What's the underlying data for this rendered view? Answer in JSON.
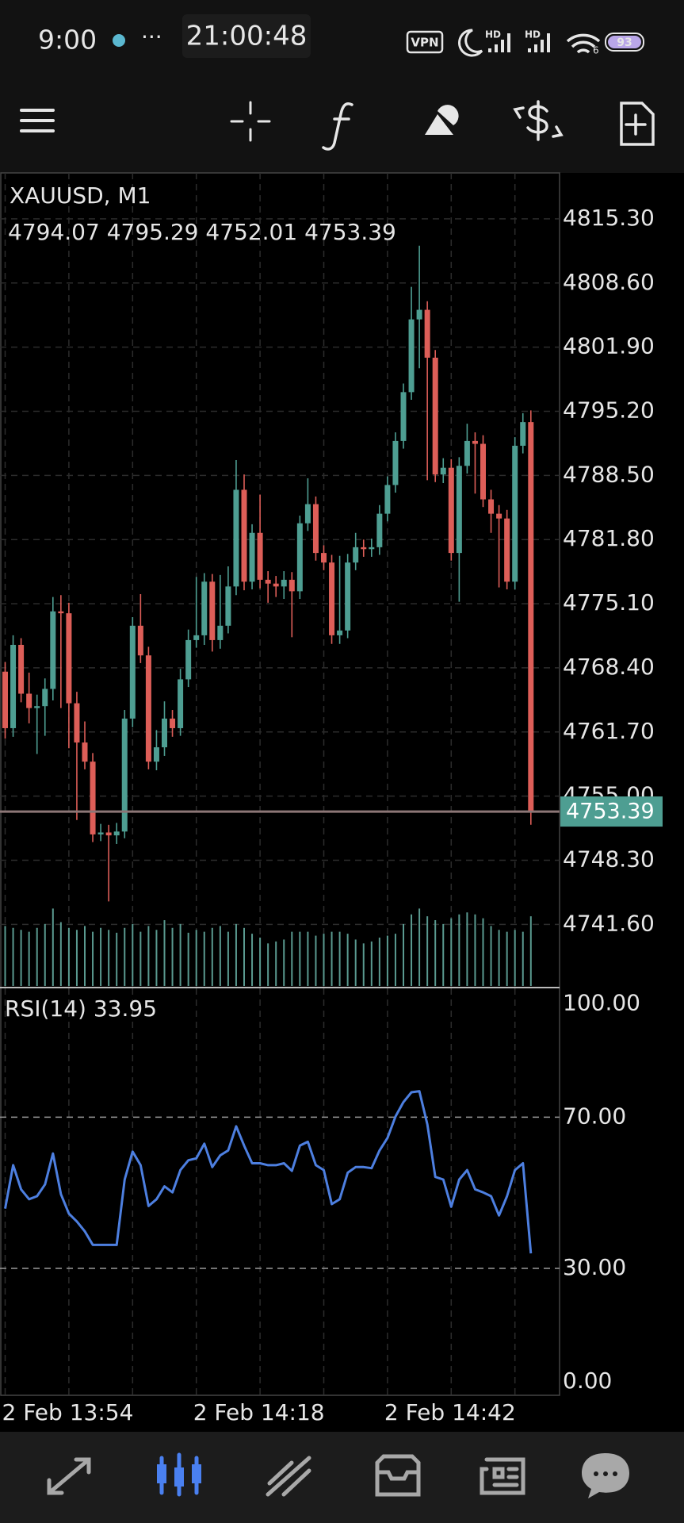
{
  "status_bar": {
    "time": "9:00",
    "clock": "21:00:48",
    "vpn": "VPN",
    "signal_labels": [
      "HD",
      "HD"
    ],
    "wifi": "6",
    "battery": "93"
  },
  "chart_data": [
    {
      "type": "candlestick",
      "title": "XAUUSD, M1",
      "subtitle": "4794.07 4795.29 4752.01 4753.39",
      "categories": [
        "2 Feb 13:54",
        null,
        null,
        null,
        null,
        null,
        null,
        null,
        null,
        null,
        null,
        null,
        null,
        null,
        null,
        null,
        null,
        null,
        null,
        null,
        null,
        null,
        null,
        null,
        "2 Feb 14:18",
        null,
        null,
        null,
        null,
        null,
        null,
        null,
        null,
        null,
        null,
        null,
        null,
        null,
        null,
        null,
        null,
        null,
        null,
        null,
        null,
        null,
        null,
        null,
        "2 Feb 14:42",
        null,
        null,
        null,
        null,
        null,
        null,
        null,
        null,
        null,
        null,
        null,
        null,
        null,
        null,
        null,
        null,
        null,
        null
      ],
      "open": [
        4768.0,
        4762.1,
        4770.8,
        4765.7,
        4764.2,
        4764.4,
        4766.2,
        4774.3,
        4774.1,
        4764.7,
        4760.6,
        4758.6,
        4751.0,
        4751.2,
        4750.9,
        4751.3,
        4763.1,
        4772.8,
        4769.7,
        4758.6,
        4760.1,
        4763.1,
        4762.1,
        4767.2,
        4771.3,
        4771.8,
        4777.4,
        4771.3,
        4772.8,
        4776.9,
        4787.0,
        4777.4,
        4782.5,
        4777.6,
        4777.2,
        4776.9,
        4777.6,
        4776.4,
        4783.5,
        4785.5,
        4780.4,
        4779.4,
        4771.8,
        4772.3,
        4779.4,
        4781.0,
        4780.8,
        4781.0,
        4784.5,
        4787.5,
        4792.1,
        4797.2,
        4804.8,
        4805.8,
        4800.8,
        4788.6,
        4789.3,
        4780.4,
        4789.5,
        4792.1,
        4791.8,
        4786.0,
        4784.5,
        4784.0,
        4777.4,
        4791.6,
        4794.07
      ],
      "high": [
        4769.0,
        4771.8,
        4771.5,
        4767.9,
        4765.6,
        4767.3,
        4775.8,
        4776.0,
        4775.2,
        4765.9,
        4762.8,
        4759.5,
        4752.1,
        4752.0,
        4752.2,
        4764.0,
        4773.7,
        4776.1,
        4770.6,
        4761.9,
        4764.9,
        4764.0,
        4768.3,
        4772.4,
        4777.9,
        4778.3,
        4778.2,
        4778.1,
        4779.0,
        4790.1,
        4788.6,
        4783.4,
        4786.5,
        4778.5,
        4778.0,
        4778.5,
        4778.4,
        4784.3,
        4788.2,
        4786.3,
        4781.2,
        4780.2,
        4780.1,
        4780.3,
        4782.5,
        4781.8,
        4781.9,
        4785.4,
        4788.4,
        4793.0,
        4798.1,
        4808.2,
        4812.5,
        4806.7,
        4801.6,
        4790.3,
        4790.2,
        4790.4,
        4793.9,
        4793.0,
        4792.7,
        4787.0,
        4785.4,
        4784.9,
        4792.5,
        4795.0,
        4795.29
      ],
      "low": [
        4761.0,
        4761.2,
        4764.8,
        4762.6,
        4759.4,
        4761.3,
        4765.0,
        4764.2,
        4760.0,
        4752.5,
        4757.8,
        4750.2,
        4750.3,
        4744.0,
        4750.0,
        4750.6,
        4762.2,
        4768.9,
        4757.8,
        4757.7,
        4759.2,
        4761.2,
        4761.3,
        4766.4,
        4770.5,
        4770.8,
        4770.1,
        4770.4,
        4772.0,
        4776.0,
        4776.5,
        4776.6,
        4776.7,
        4775.2,
        4775.8,
        4775.6,
        4771.6,
        4775.6,
        4782.7,
        4779.6,
        4778.6,
        4770.9,
        4770.9,
        4771.5,
        4778.6,
        4780.0,
        4780.0,
        4780.2,
        4783.7,
        4786.7,
        4791.3,
        4796.4,
        4799.7,
        4788.0,
        4787.8,
        4787.7,
        4779.6,
        4775.3,
        4788.7,
        4786.6,
        4785.2,
        4782.5,
        4776.8,
        4776.6,
        4776.6,
        4790.8,
        4752.01
      ],
      "close": [
        4762.1,
        4770.8,
        4765.7,
        4764.2,
        4764.4,
        4766.2,
        4774.3,
        4774.1,
        4764.7,
        4760.6,
        4758.6,
        4751.0,
        4751.2,
        4750.9,
        4751.3,
        4763.1,
        4772.8,
        4769.7,
        4758.6,
        4760.1,
        4763.1,
        4762.1,
        4767.2,
        4771.3,
        4771.8,
        4777.4,
        4771.3,
        4772.8,
        4776.9,
        4787.0,
        4777.4,
        4782.5,
        4777.6,
        4777.2,
        4776.9,
        4777.6,
        4776.4,
        4783.5,
        4785.5,
        4780.4,
        4779.4,
        4771.8,
        4772.3,
        4779.4,
        4781.0,
        4780.8,
        4781.0,
        4784.5,
        4787.5,
        4792.1,
        4797.2,
        4804.8,
        4805.8,
        4800.8,
        4788.6,
        4789.3,
        4780.4,
        4789.5,
        4792.1,
        4791.8,
        4786.0,
        4784.5,
        4784.0,
        4777.4,
        4791.6,
        4794.07,
        4753.39
      ],
      "volume": [
        62,
        60,
        58,
        56,
        60,
        64,
        80,
        66,
        60,
        58,
        62,
        56,
        60,
        58,
        55,
        60,
        64,
        56,
        62,
        58,
        68,
        60,
        64,
        55,
        58,
        56,
        60,
        62,
        56,
        64,
        60,
        54,
        50,
        44,
        46,
        48,
        56,
        56,
        56,
        52,
        54,
        56,
        56,
        54,
        48,
        44,
        46,
        50,
        52,
        54,
        64,
        74,
        80,
        72,
        68,
        64,
        70,
        74,
        76,
        74,
        70,
        62,
        58,
        56,
        58,
        56,
        72
      ],
      "up_color": "#4e9e92",
      "down_color": "#dd5e58",
      "volume_color": "#5a9a90",
      "ylim": [
        4735.0,
        4820.1
      ],
      "yticks": [
        {
          "value": 4815.3,
          "label": "4815.30"
        },
        {
          "value": 4808.6,
          "label": "4808.60"
        },
        {
          "value": 4801.9,
          "label": "4801.90"
        },
        {
          "value": 4795.2,
          "label": "4795.20"
        },
        {
          "value": 4788.5,
          "label": "4788.50"
        },
        {
          "value": 4781.8,
          "label": "4781.80"
        },
        {
          "value": 4775.1,
          "label": "4775.10"
        },
        {
          "value": 4768.4,
          "label": "4768.40"
        },
        {
          "value": 4761.7,
          "label": "4761.70"
        },
        {
          "value": 4755.0,
          "label": "4755.00"
        },
        {
          "value": 4748.3,
          "label": "4748.30"
        },
        {
          "value": 4741.6,
          "label": "4741.60"
        }
      ],
      "grid": true
    },
    {
      "type": "line",
      "title": "RSI(14) 33.95",
      "color": "#4d7fe0",
      "values": [
        45.8,
        57.3,
        50.9,
        48.3,
        49.1,
        52.2,
        60.4,
        49.6,
        44.5,
        42.4,
        39.8,
        36.2,
        36.2,
        36.2,
        36.2,
        53.5,
        60.9,
        57.3,
        46.5,
        48.3,
        51.7,
        50.1,
        56.0,
        58.6,
        59.1,
        63.0,
        56.8,
        59.9,
        61.2,
        67.6,
        62.5,
        57.8,
        57.8,
        57.3,
        57.3,
        57.8,
        55.8,
        62.5,
        63.5,
        57.3,
        56.0,
        47.0,
        48.3,
        55.3,
        56.8,
        56.8,
        56.5,
        61.2,
        64.5,
        70.2,
        74.0,
        76.6,
        76.9,
        68.1,
        54.2,
        53.5,
        46.3,
        53.5,
        56.0,
        50.9,
        50.1,
        49.1,
        44.0,
        49.1,
        56.0,
        57.8,
        33.95
      ],
      "ylim": [
        -3.6,
        104.1
      ],
      "yticks": [
        {
          "value": 100,
          "label": "100.00"
        },
        {
          "value": 70,
          "label": "70.00"
        },
        {
          "value": 30,
          "label": "30.00"
        },
        {
          "value": 0,
          "label": "0.00"
        }
      ],
      "levels": [
        70,
        30
      ]
    }
  ]
}
